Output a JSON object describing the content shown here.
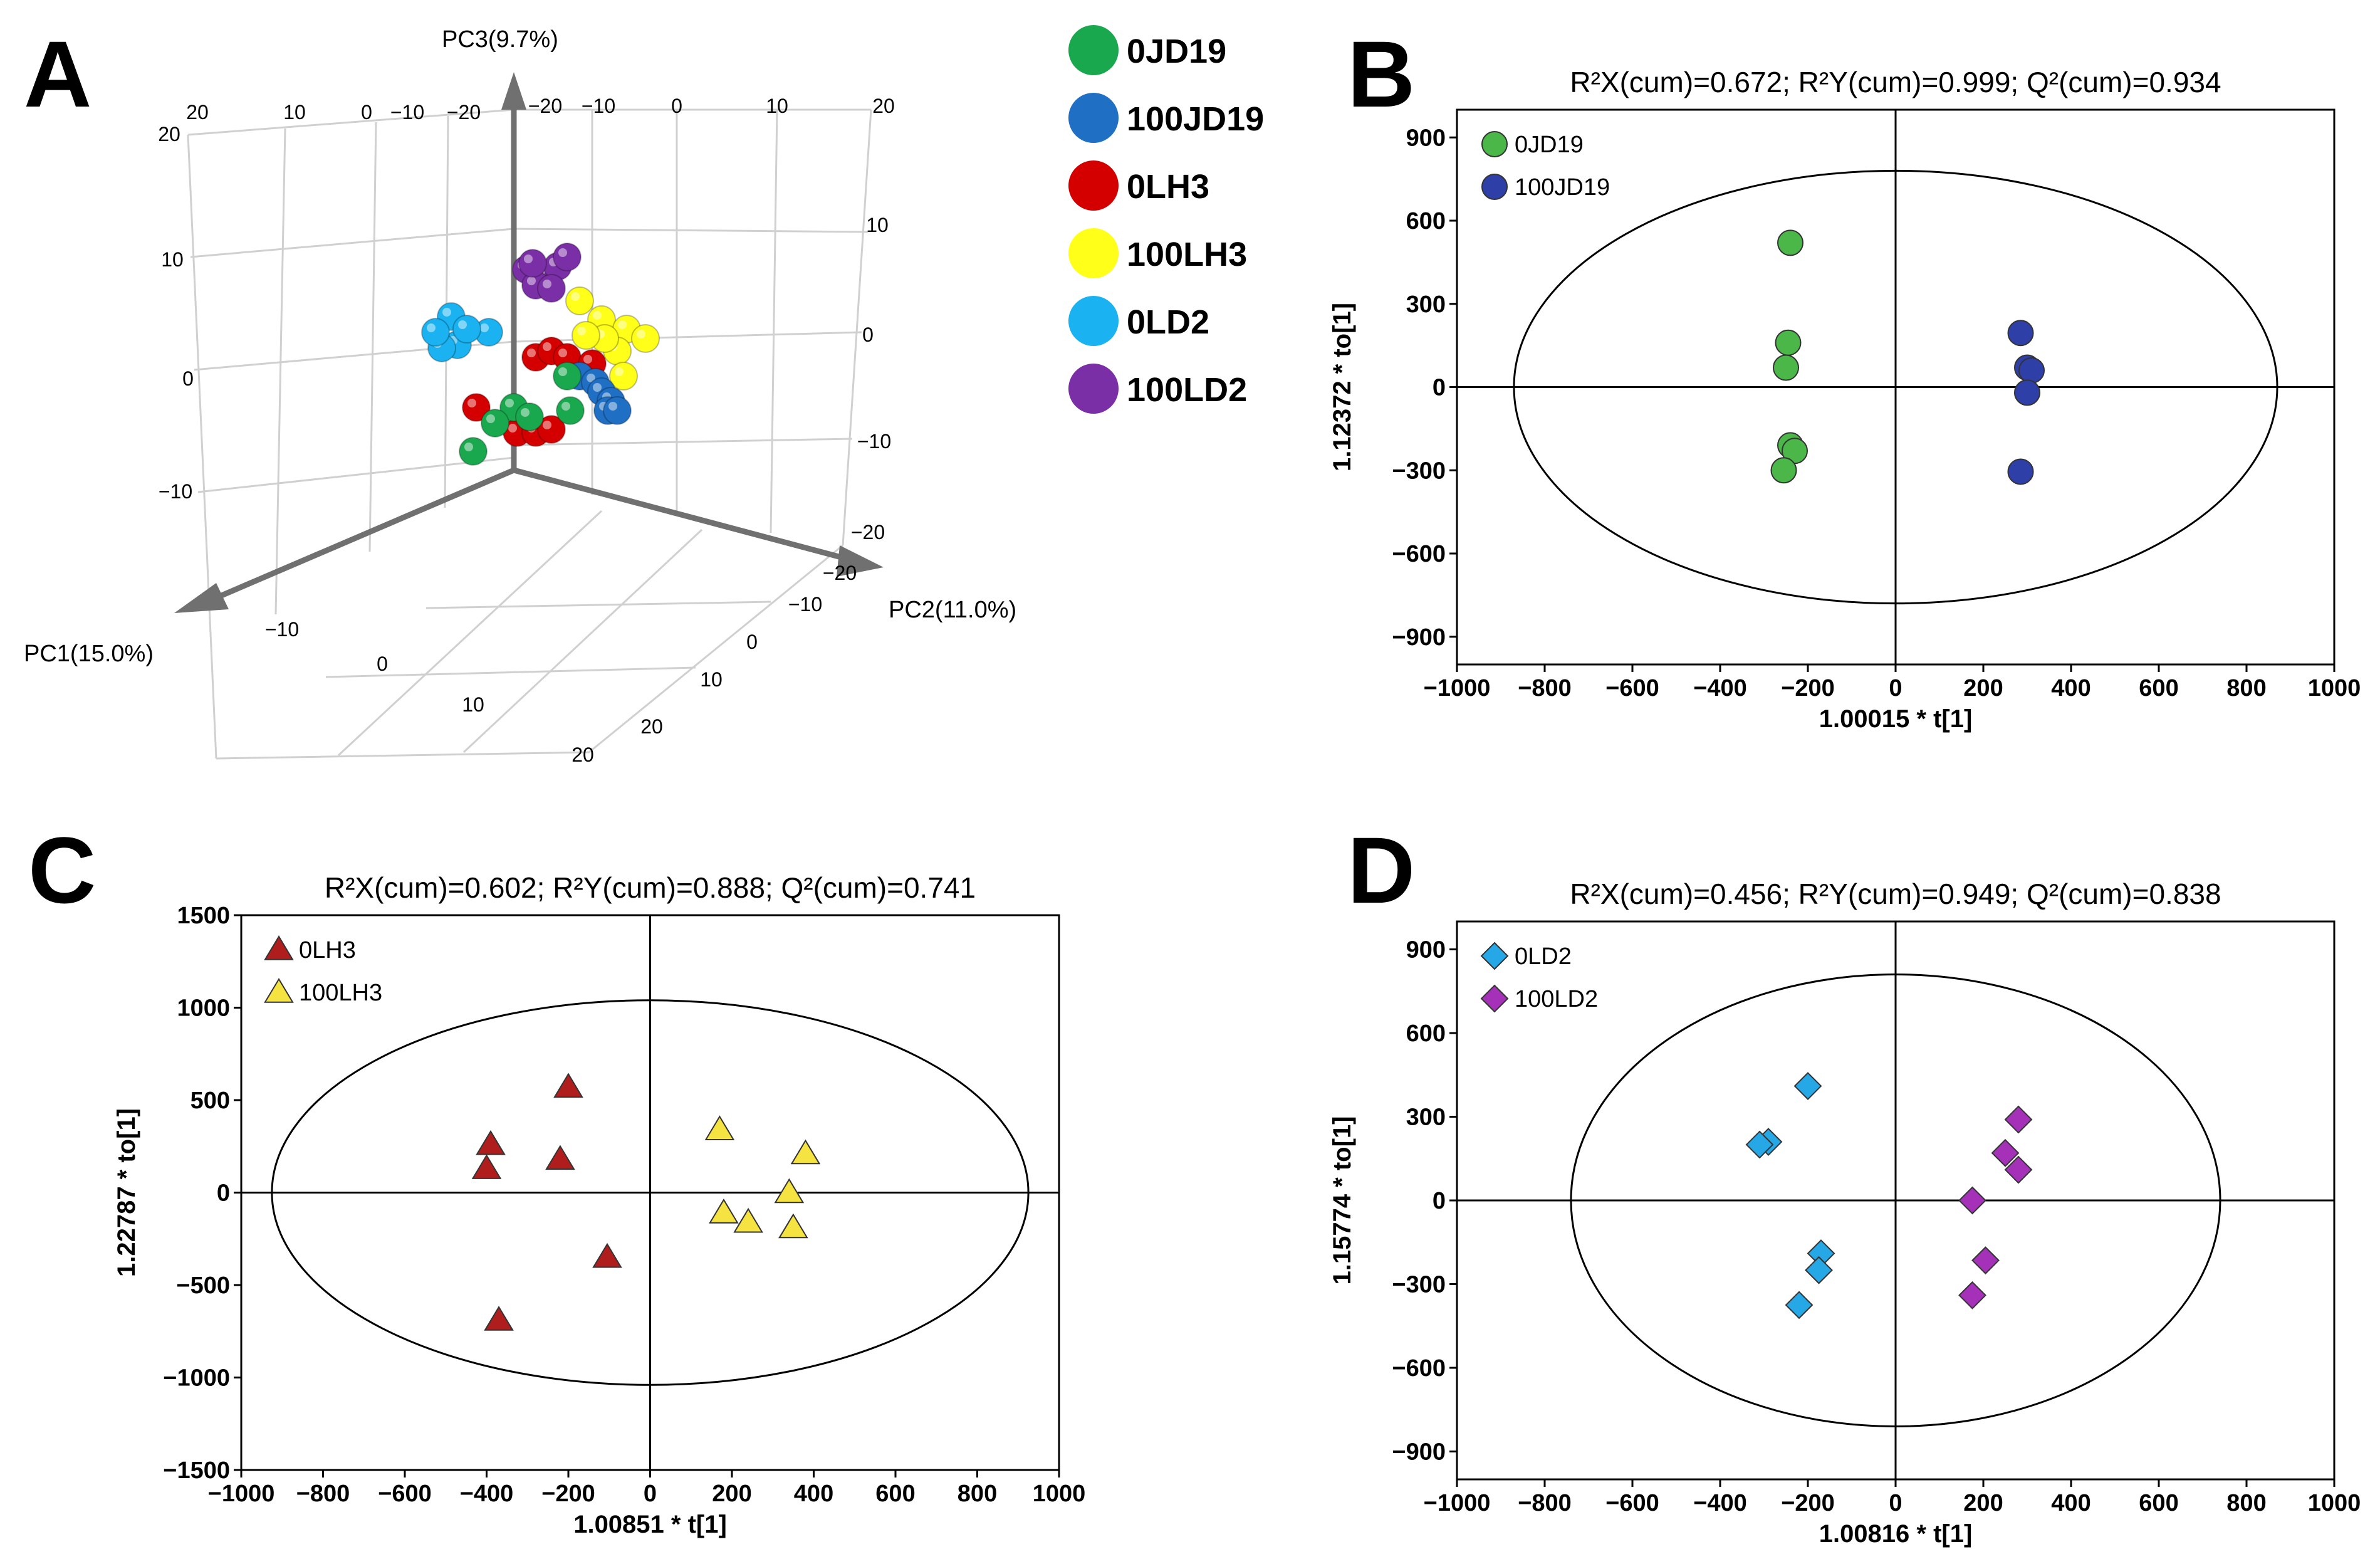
{
  "chart_data": [
    {
      "panel": "A",
      "type": "scatter",
      "subtype": "3d-pca",
      "axis_labels": {
        "pc1": "PC1(15.0%)",
        "pc2": "PC2(11.0%)",
        "pc3": "PC3(9.7%)"
      },
      "tick_labels": {
        "top_row": [
          "20",
          "10",
          "0",
          "−10",
          "−20",
          "−20",
          "−10",
          "0",
          "10",
          "20"
        ],
        "left_col": [
          "20",
          "10",
          "0",
          "−10"
        ],
        "right_col": [
          "10",
          "0",
          "−10",
          "−20"
        ],
        "pc2_axis": [
          "−20",
          "−10",
          "0",
          "10",
          "20"
        ],
        "pc1_axis": [
          "−10",
          "0",
          "10",
          "20"
        ]
      },
      "legend": [
        {
          "name": "0JD19",
          "color": "#1aa84f"
        },
        {
          "name": "100JD19",
          "color": "#1f6fc4"
        },
        {
          "name": "0LH3",
          "color": "#d40000"
        },
        {
          "name": "100LH3",
          "color": "#ffff1a"
        },
        {
          "name": "0LD2",
          "color": "#1ab2f0"
        },
        {
          "name": "100LD2",
          "color": "#7b2fa6"
        }
      ]
    },
    {
      "panel": "B",
      "type": "scatter",
      "title": "R²X(cum)=0.672; R²Y(cum)=0.999; Q²(cum)=0.934",
      "xlabel": "1.00015 * t[1]",
      "ylabel": "1.12372 * to[1]",
      "xlim": [
        -1000,
        1000
      ],
      "ylim": [
        -1000,
        1000
      ],
      "xticks": [
        -1000,
        -800,
        -600,
        -400,
        -200,
        0,
        200,
        400,
        600,
        800,
        1000
      ],
      "yticks": [
        -900,
        -600,
        -300,
        0,
        300,
        600,
        900
      ],
      "ellipse": {
        "rx": 870,
        "ry": 780
      },
      "series": [
        {
          "name": "0JD19",
          "marker": "circle",
          "color": "#4bb749",
          "points": [
            [
              -240,
              520
            ],
            [
              -245,
              160
            ],
            [
              -250,
              70
            ],
            [
              -240,
              -210
            ],
            [
              -230,
              -230
            ],
            [
              -255,
              -300
            ]
          ]
        },
        {
          "name": "100JD19",
          "marker": "circle",
          "color": "#2e3fa8",
          "points": [
            [
              285,
              195
            ],
            [
              300,
              70
            ],
            [
              310,
              60
            ],
            [
              300,
              -20
            ],
            [
              285,
              -305
            ]
          ]
        }
      ]
    },
    {
      "panel": "C",
      "type": "scatter",
      "title": "R²X(cum)=0.602; R²Y(cum)=0.888; Q²(cum)=0.741",
      "xlabel": "1.00851 * t[1]",
      "ylabel": "1.22787 * to[1]",
      "xlim": [
        -1000,
        1000
      ],
      "ylim": [
        -1500,
        1500
      ],
      "xticks": [
        -1000,
        -800,
        -600,
        -400,
        -200,
        0,
        200,
        400,
        600,
        800,
        1000
      ],
      "yticks": [
        -1500,
        -1000,
        -500,
        0,
        500,
        1000,
        1500
      ],
      "ellipse": {
        "rx": 925,
        "ry": 1040
      },
      "series": [
        {
          "name": "0LH3",
          "marker": "triangle",
          "color": "#b01d1d",
          "points": [
            [
              -200,
              570
            ],
            [
              -390,
              260
            ],
            [
              -400,
              130
            ],
            [
              -220,
              180
            ],
            [
              -105,
              -350
            ],
            [
              -370,
              -690
            ]
          ]
        },
        {
          "name": "100LH3",
          "marker": "triangle",
          "color": "#f5e342",
          "points": [
            [
              170,
              340
            ],
            [
              380,
              210
            ],
            [
              340,
              0
            ],
            [
              180,
              -110
            ],
            [
              240,
              -160
            ],
            [
              350,
              -190
            ]
          ]
        }
      ]
    },
    {
      "panel": "D",
      "type": "scatter",
      "title": "R²X(cum)=0.456; R²Y(cum)=0.949; Q²(cum)=0.838",
      "xlabel": "1.00816 * t[1]",
      "ylabel": "1.15774 * to[1]",
      "xlim": [
        -1000,
        1000
      ],
      "ylim": [
        -1000,
        1000
      ],
      "xticks": [
        -1000,
        -800,
        -600,
        -400,
        -200,
        0,
        200,
        400,
        600,
        800,
        1000
      ],
      "yticks": [
        -900,
        -600,
        -300,
        0,
        300,
        600,
        900
      ],
      "ellipse": {
        "rx": 740,
        "ry": 810
      },
      "series": [
        {
          "name": "0LD2",
          "marker": "diamond",
          "color": "#26a7e6",
          "points": [
            [
              -200,
              410
            ],
            [
              -290,
              210
            ],
            [
              -310,
              200
            ],
            [
              -170,
              -190
            ],
            [
              -175,
              -250
            ],
            [
              -220,
              -375
            ]
          ]
        },
        {
          "name": "100LD2",
          "marker": "diamond",
          "color": "#a431b8",
          "points": [
            [
              280,
              290
            ],
            [
              250,
              170
            ],
            [
              280,
              110
            ],
            [
              175,
              0
            ],
            [
              205,
              -215
            ],
            [
              175,
              -340
            ]
          ]
        }
      ]
    }
  ]
}
